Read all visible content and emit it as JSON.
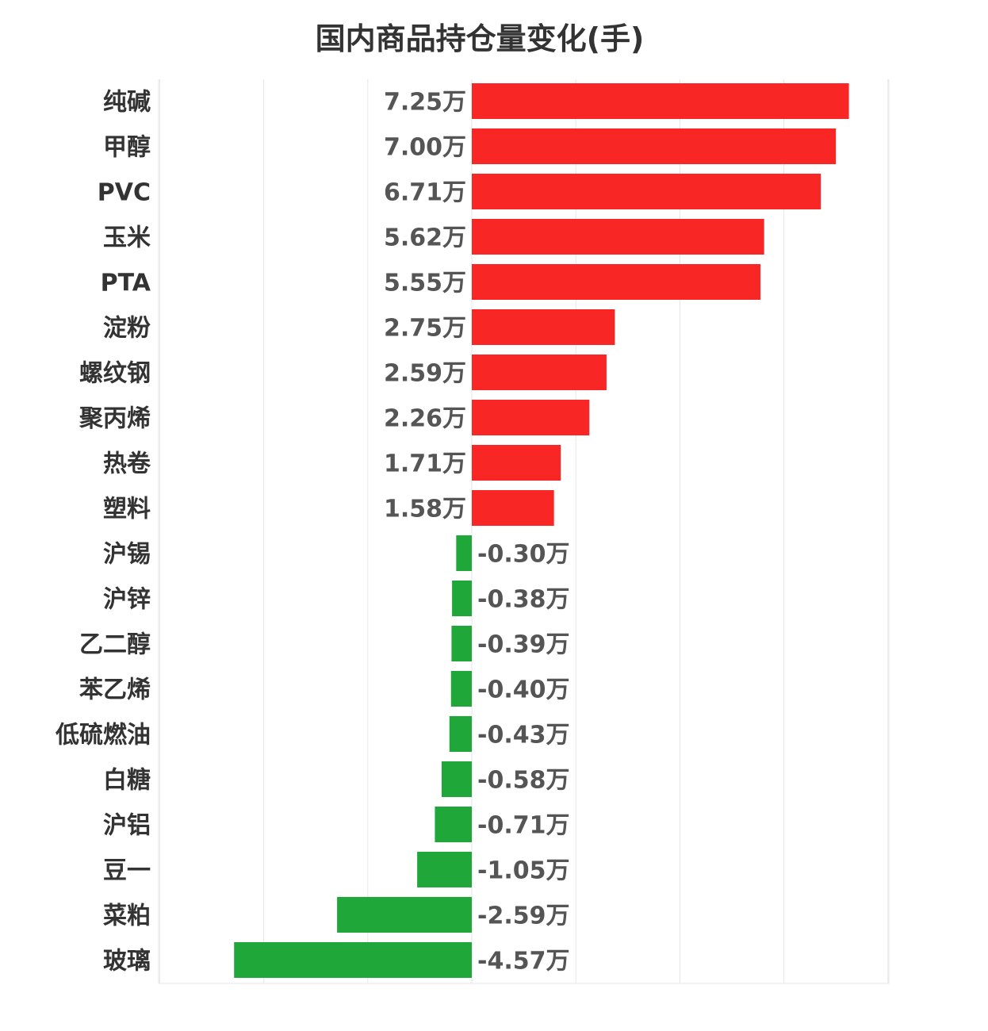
{
  "title": "国内商品持仓量变化(手)",
  "colors": {
    "positive": "#f92626",
    "negative": "#20a73a",
    "grid": "#e6e6e6",
    "category_text": "#333333",
    "value_text": "#555555"
  },
  "chart_data": {
    "type": "bar",
    "orientation": "horizontal",
    "title": "国内商品持仓量变化(手)",
    "xlabel": "",
    "ylabel": "",
    "unit": "万",
    "xlim": [
      -6,
      8
    ],
    "grid": true,
    "legend": "none",
    "categories": [
      "纯碱",
      "甲醇",
      "PVC",
      "玉米",
      "PTA",
      "淀粉",
      "螺纹钢",
      "聚丙烯",
      "热卷",
      "塑料",
      "沪锡",
      "沪锌",
      "乙二醇",
      "苯乙烯",
      "低硫燃油",
      "白糖",
      "沪铝",
      "豆一",
      "菜粕",
      "玻璃"
    ],
    "values": [
      7.25,
      7.0,
      6.71,
      5.62,
      5.55,
      2.75,
      2.59,
      2.26,
      1.71,
      1.58,
      -0.3,
      -0.38,
      -0.39,
      -0.4,
      -0.43,
      -0.58,
      -0.71,
      -1.05,
      -2.59,
      -4.57
    ],
    "value_labels": [
      "7.25万",
      "7.00万",
      "6.71万",
      "5.62万",
      "5.55万",
      "2.75万",
      "2.59万",
      "2.26万",
      "1.71万",
      "1.58万",
      "-0.30万",
      "-0.38万",
      "-0.39万",
      "-0.40万",
      "-0.43万",
      "-0.58万",
      "-0.71万",
      "-1.05万",
      "-2.59万",
      "-4.57万"
    ]
  }
}
